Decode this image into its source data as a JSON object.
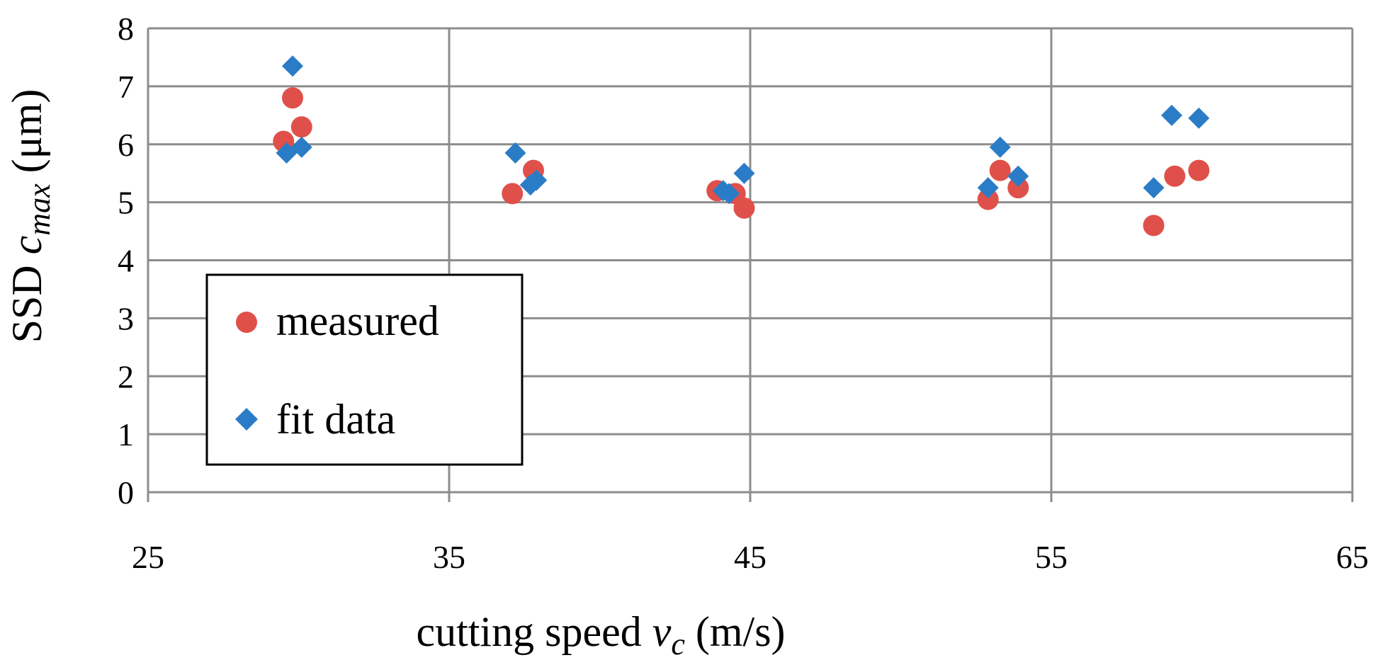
{
  "chart_data": {
    "type": "scatter",
    "title": "",
    "xlabel": {
      "main": "cutting speed ",
      "var": "v",
      "sub": "c",
      "unit": " (m/s)"
    },
    "ylabel": {
      "main": "SSD ",
      "var": "c",
      "sub": "max",
      "unit": " (μm)"
    },
    "xlim": [
      25,
      65
    ],
    "ylim": [
      0,
      8
    ],
    "xticks": [
      25,
      35,
      45,
      55,
      65
    ],
    "yticks": [
      0,
      1,
      2,
      3,
      4,
      5,
      6,
      7,
      8
    ],
    "grid": true,
    "legend_position": "bottom-left",
    "series": [
      {
        "name": "measured",
        "marker": "circle",
        "color": "#e0504a",
        "points": [
          {
            "x": 29.5,
            "y": 6.05
          },
          {
            "x": 29.8,
            "y": 6.8
          },
          {
            "x": 30.1,
            "y": 6.3
          },
          {
            "x": 37.1,
            "y": 5.15
          },
          {
            "x": 37.8,
            "y": 5.55
          },
          {
            "x": 43.9,
            "y": 5.2
          },
          {
            "x": 44.5,
            "y": 5.15
          },
          {
            "x": 44.8,
            "y": 4.9
          },
          {
            "x": 52.9,
            "y": 5.05
          },
          {
            "x": 53.3,
            "y": 5.55
          },
          {
            "x": 53.9,
            "y": 5.25
          },
          {
            "x": 58.4,
            "y": 4.6
          },
          {
            "x": 59.1,
            "y": 5.45
          },
          {
            "x": 59.9,
            "y": 5.55
          }
        ]
      },
      {
        "name": "fit data",
        "marker": "diamond",
        "color": "#2b7cc7",
        "points": [
          {
            "x": 29.8,
            "y": 7.35
          },
          {
            "x": 29.6,
            "y": 5.85
          },
          {
            "x": 30.1,
            "y": 5.95
          },
          {
            "x": 37.2,
            "y": 5.85
          },
          {
            "x": 37.7,
            "y": 5.3
          },
          {
            "x": 37.9,
            "y": 5.38
          },
          {
            "x": 44.1,
            "y": 5.2
          },
          {
            "x": 44.3,
            "y": 5.15
          },
          {
            "x": 44.8,
            "y": 5.5
          },
          {
            "x": 52.9,
            "y": 5.25
          },
          {
            "x": 53.3,
            "y": 5.95
          },
          {
            "x": 53.9,
            "y": 5.45
          },
          {
            "x": 58.4,
            "y": 5.25
          },
          {
            "x": 59.0,
            "y": 6.5
          },
          {
            "x": 59.9,
            "y": 6.45
          }
        ]
      }
    ]
  }
}
